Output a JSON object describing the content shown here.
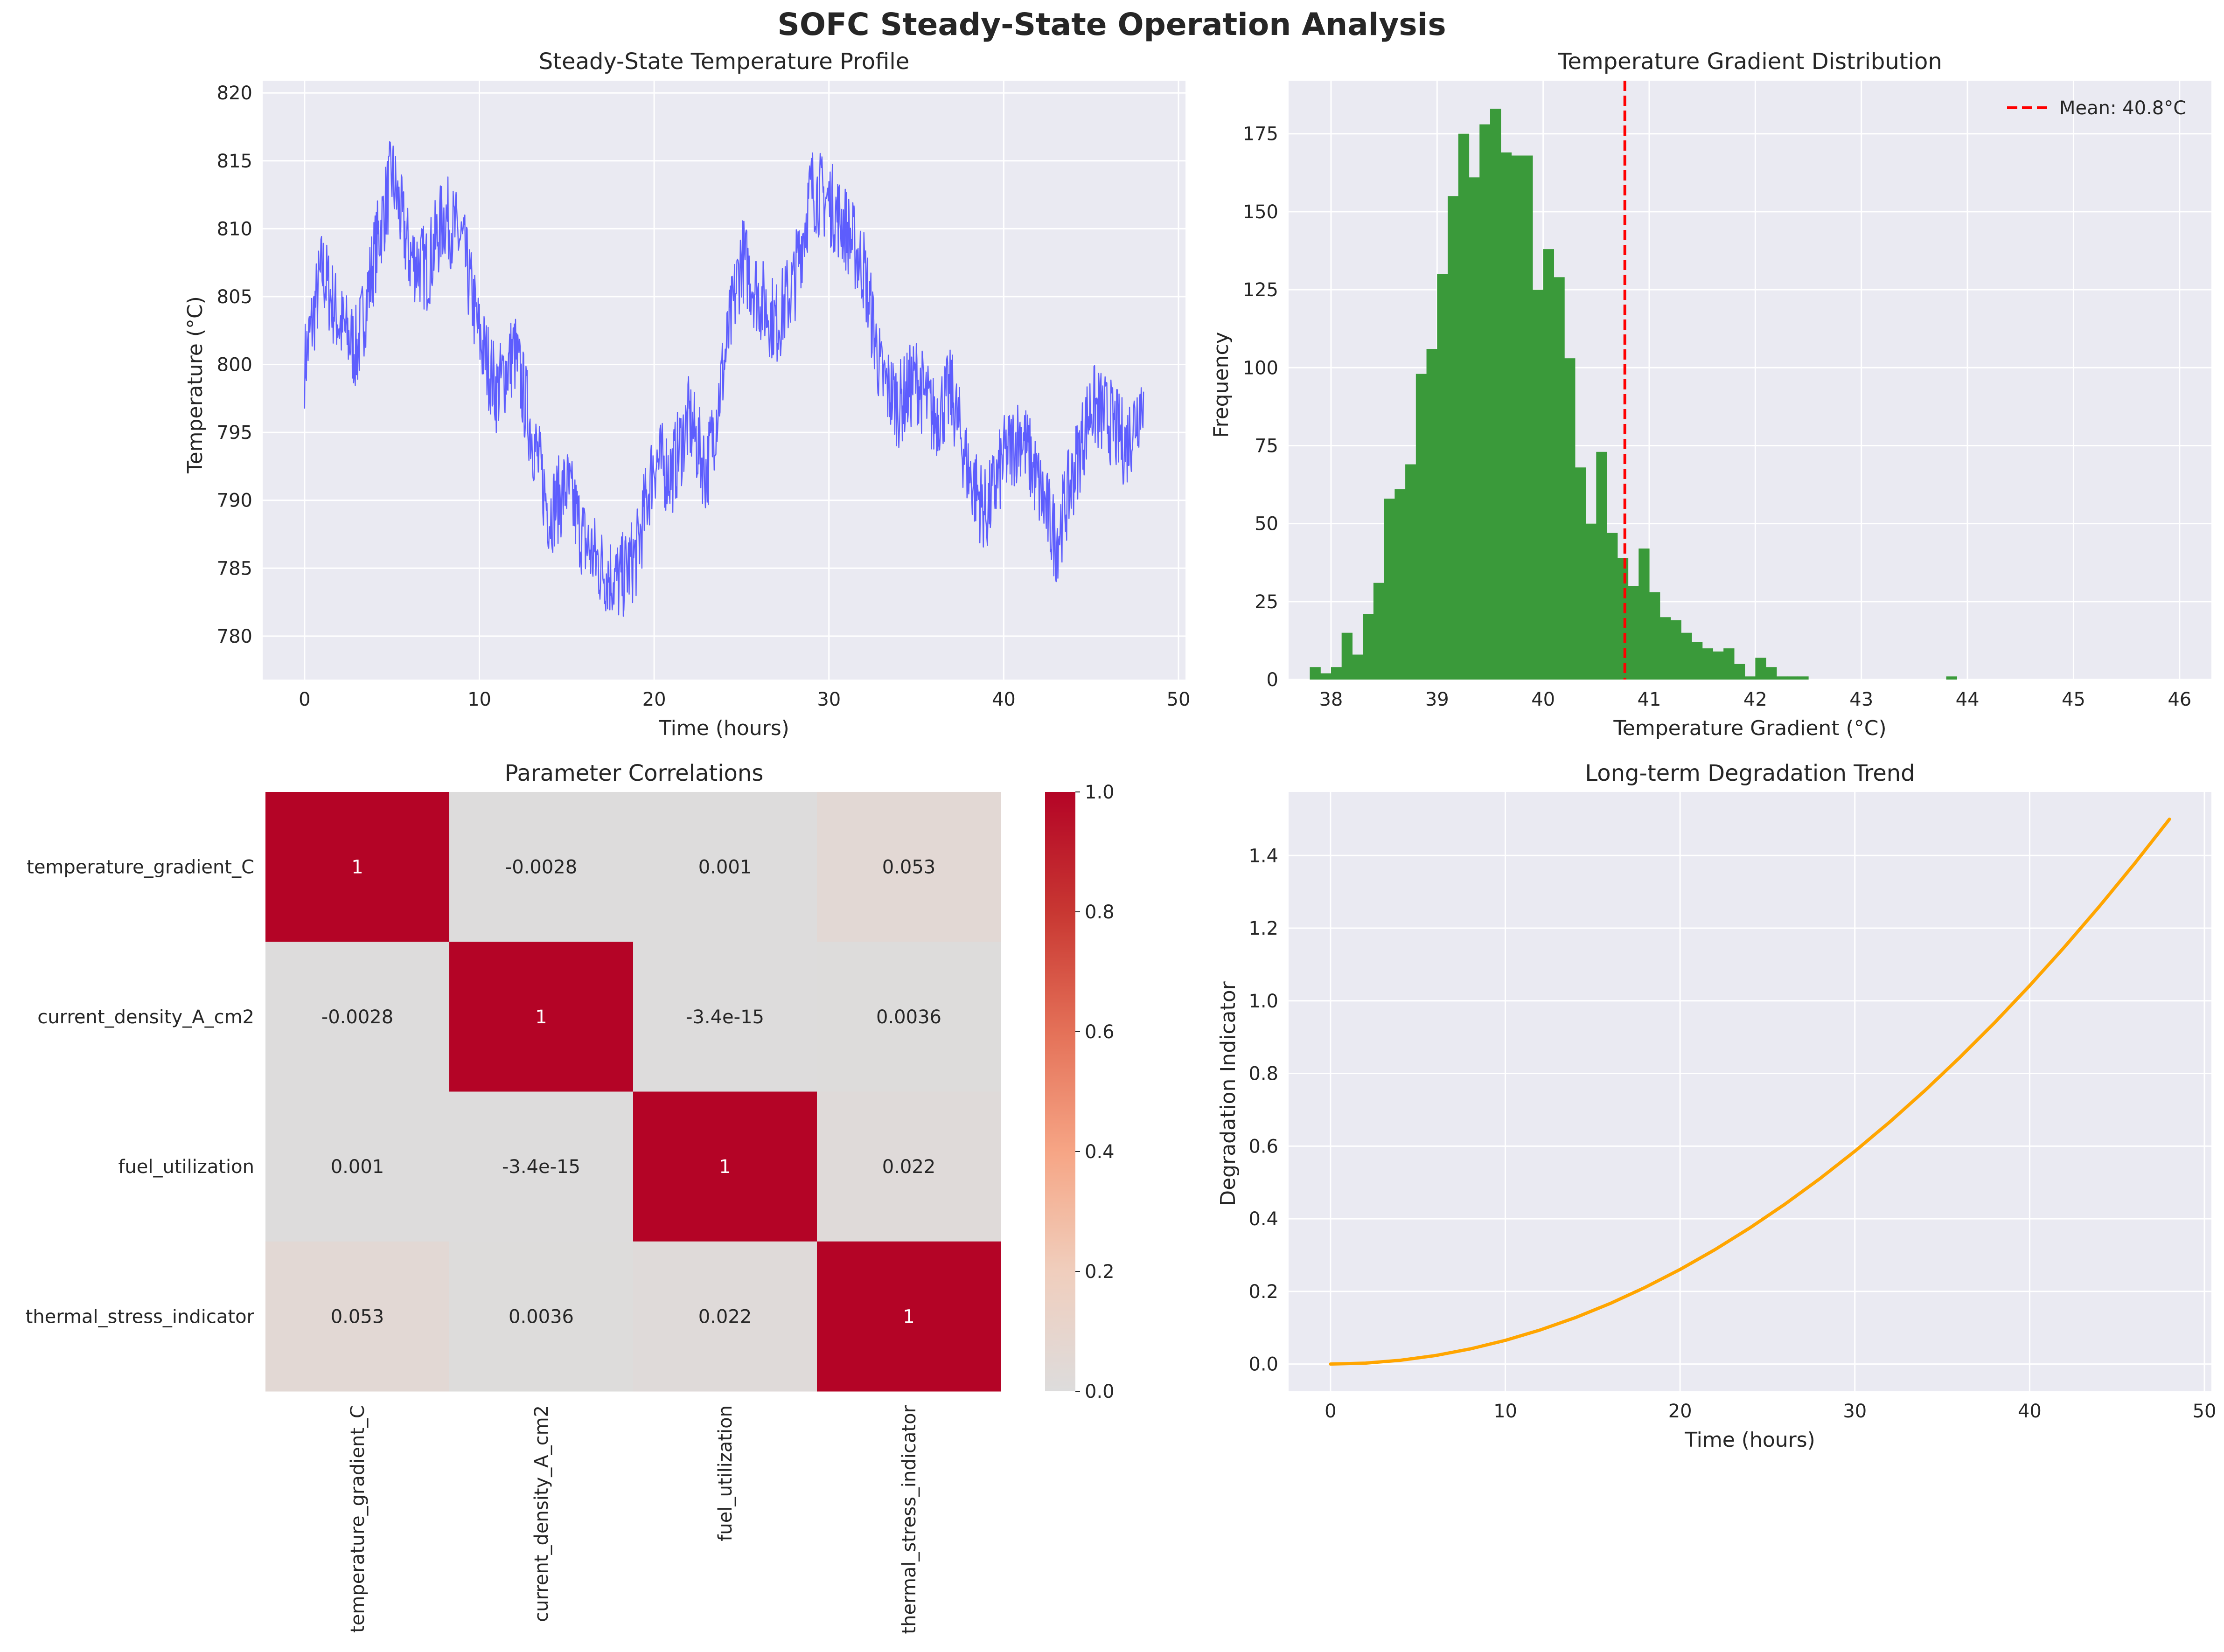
{
  "figure": {
    "title": "SOFC Steady-State Operation Analysis"
  },
  "colors": {
    "axes_bg": "#eaeaf2",
    "grid": "#ffffff",
    "temperature_line": "#4444ff",
    "histogram": "#3a9a3a",
    "mean_line": "#ff0000",
    "degradation_line": "#ffa500"
  },
  "chart_data": [
    {
      "type": "line",
      "title": "Steady-State Temperature Profile",
      "xlabel": "Time (hours)",
      "ylabel": "Temperature (°C)",
      "xlim": [
        -2.4,
        50.4
      ],
      "ylim": [
        776.8,
        820.9
      ],
      "xticks": [
        0,
        10,
        20,
        30,
        40,
        50
      ],
      "yticks": [
        780,
        785,
        790,
        795,
        800,
        805,
        810,
        815,
        820
      ],
      "grid": true,
      "series": [
        {
          "x": [
            0,
            1,
            2,
            3,
            4,
            5,
            6,
            7,
            8,
            9,
            10,
            11,
            12,
            13,
            14,
            15,
            16,
            17,
            18,
            19,
            20,
            21,
            22,
            23,
            24,
            25,
            26,
            27,
            28,
            29,
            30,
            31,
            32,
            33,
            34,
            35,
            36,
            37,
            38,
            39,
            40,
            41,
            42,
            43,
            44,
            45,
            46,
            47,
            48
          ],
          "y": [
            800,
            807,
            803,
            801,
            808,
            814,
            808,
            807,
            811,
            809,
            802,
            798,
            801,
            795,
            789,
            791,
            787,
            785,
            784,
            786,
            793,
            792,
            796,
            792,
            800,
            808,
            805,
            803,
            806,
            813,
            812,
            810,
            807,
            799,
            797,
            799,
            796,
            798,
            792,
            789,
            793,
            795,
            791,
            787,
            792,
            797,
            796,
            794,
            798
          ]
        }
      ]
    },
    {
      "type": "bar",
      "title": "Temperature Gradient Distribution",
      "xlabel": "Temperature Gradient (°C)",
      "ylabel": "Frequency",
      "xlim": [
        37.6,
        46.3
      ],
      "ylim": [
        0,
        192
      ],
      "xticks": [
        38,
        39,
        40,
        41,
        42,
        43,
        44,
        45,
        46
      ],
      "yticks": [
        0,
        25,
        50,
        75,
        100,
        125,
        150,
        175
      ],
      "grid": true,
      "bin_start": 37.8,
      "bin_width": 0.1,
      "values": [
        4,
        2,
        4,
        15,
        8,
        21,
        31,
        58,
        61,
        69,
        98,
        106,
        130,
        155,
        175,
        161,
        178,
        183,
        169,
        168,
        168,
        125,
        138,
        129,
        103,
        68,
        50,
        73,
        47,
        39,
        30,
        42,
        28,
        20,
        19,
        15,
        12,
        10,
        9,
        10,
        5,
        1,
        7,
        4,
        1,
        1,
        1,
        0,
        0,
        0,
        0,
        0,
        0,
        0,
        0,
        0,
        0,
        0,
        0,
        0,
        1
      ],
      "mean_line": {
        "x": 40.77,
        "label": "Mean: 40.8°C"
      },
      "legend_position": "upper right"
    },
    {
      "type": "heatmap",
      "title": "Parameter Correlations",
      "row_labels": [
        "temperature_gradient_C",
        "current_density_A_cm2",
        "fuel_utilization",
        "thermal_stress_indicator"
      ],
      "col_labels": [
        "temperature_gradient_C",
        "current_density_A_cm2",
        "fuel_utilization",
        "thermal_stress_indicator"
      ],
      "values": [
        [
          1,
          -0.0028,
          0.001,
          0.053
        ],
        [
          -0.0028,
          1,
          -3.4e-15,
          0.0036
        ],
        [
          0.001,
          -3.4e-15,
          1,
          0.022
        ],
        [
          0.053,
          0.0036,
          0.022,
          1
        ]
      ],
      "annotations": [
        [
          "1",
          "-0.0028",
          "0.001",
          "0.053"
        ],
        [
          "-0.0028",
          "1",
          "-3.4e-15",
          "0.0036"
        ],
        [
          "0.001",
          "-3.4e-15",
          "1",
          "0.022"
        ],
        [
          "0.053",
          "0.0036",
          "0.022",
          "1"
        ]
      ],
      "colorbar": {
        "range": [
          0,
          1
        ],
        "ticks": [
          "0.0",
          "0.2",
          "0.4",
          "0.6",
          "0.8",
          "1.0"
        ],
        "colormap": "coolwarm"
      }
    },
    {
      "type": "line",
      "title": "Long-term Degradation Trend",
      "xlabel": "Time (hours)",
      "ylabel": "Degradation Indicator",
      "xlim": [
        -2.4,
        50.4
      ],
      "ylim": [
        -0.075,
        1.575
      ],
      "xticks": [
        0,
        10,
        20,
        30,
        40,
        50
      ],
      "yticks": [
        "0.0",
        "0.2",
        "0.4",
        "0.6",
        "0.8",
        "1.0",
        "1.2",
        "1.4"
      ],
      "grid": true,
      "series": [
        {
          "x": [
            0,
            2,
            4,
            6,
            8,
            10,
            12,
            14,
            16,
            18,
            20,
            22,
            24,
            26,
            28,
            30,
            32,
            34,
            36,
            38,
            40,
            42,
            44,
            46,
            48
          ],
          "y": [
            0,
            0.0026,
            0.0104,
            0.0234,
            0.0417,
            0.0651,
            0.0938,
            0.1276,
            0.1667,
            0.2109,
            0.2604,
            0.3151,
            0.375,
            0.4401,
            0.5104,
            0.5859,
            0.6667,
            0.7526,
            0.8438,
            0.9401,
            1.0417,
            1.1484,
            1.2604,
            1.3776,
            1.5
          ]
        }
      ]
    }
  ]
}
